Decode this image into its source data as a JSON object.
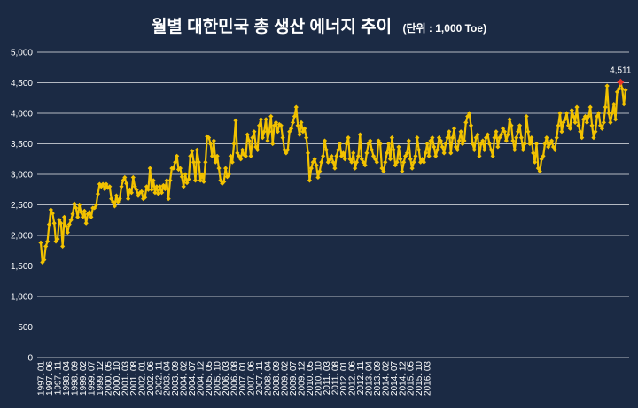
{
  "chart_data": {
    "type": "line",
    "title": "월별 대한민국 총 생산 에너지 추이",
    "title_unit": "(단위 : 1,000 Toe)",
    "ylim": [
      0,
      5000
    ],
    "y_ticks": [
      "0",
      "500",
      "1,000",
      "1,500",
      "2,000",
      "2,500",
      "3,000",
      "3,500",
      "4,000",
      "4,500",
      "5,000"
    ],
    "x_tick_labels": [
      "1997. 01",
      "1997. 06",
      "1997. 11",
      "1998. 04",
      "1998. 09",
      "1999. 02",
      "1999. 07",
      "1999. 12",
      "2000. 05",
      "2000. 10",
      "2001. 03",
      "2001. 08",
      "2002. 01",
      "2002. 06",
      "2002. 11",
      "2003. 04",
      "2003. 09",
      "2004. 02",
      "2004. 07",
      "2004. 12",
      "2005. 05",
      "2005. 10",
      "2006. 03",
      "2006. 08",
      "2007. 01",
      "2007. 06",
      "2007. 11",
      "2008. 04",
      "2008. 09",
      "2009. 02",
      "2009. 07",
      "2009. 12",
      "2010. 05",
      "2010. 10",
      "2011. 03",
      "2011. 08",
      "2012. 01",
      "2012. 06",
      "2012. 11",
      "2013. 04",
      "2013. 09",
      "2014. 02",
      "2014. 07",
      "2014. 12",
      "2015. 05",
      "2015. 10",
      "2016. 03"
    ],
    "grid": true,
    "line_color": "#f2c200",
    "marker_color": "#f2c200",
    "highlight_color": "#e8362a",
    "highlight_label": "4,511",
    "highlight_value": 4511,
    "series": [
      {
        "values": [
          1880,
          1560,
          1600,
          1820,
          1900,
          2180,
          2420,
          2360,
          2200,
          1900,
          1940,
          2250,
          2200,
          1820,
          2300,
          2150,
          2050,
          2180,
          2250,
          2350,
          2520,
          2450,
          2300,
          2500,
          2380,
          2300,
          2400,
          2200,
          2350,
          2380,
          2300,
          2450,
          2450,
          2500,
          2680,
          2840,
          2800,
          2840,
          2760,
          2840,
          2780,
          2800,
          2600,
          2550,
          2480,
          2650,
          2550,
          2600,
          2800,
          2900,
          2950,
          2850,
          2600,
          2750,
          2700,
          2950,
          2800,
          2750,
          2650,
          2700,
          2720,
          2600,
          2620,
          2800,
          2750,
          3100,
          2750,
          2900,
          2700,
          2800,
          2680,
          2800,
          2700,
          2820,
          2760,
          2900,
          2600,
          2900,
          3100,
          3100,
          3200,
          3300,
          3080,
          3100,
          2960,
          2800,
          3000,
          2860,
          2920,
          3300,
          3380,
          3200,
          2900,
          3400,
          3200,
          2900,
          3000,
          2880,
          3200,
          3620,
          3600,
          3500,
          3300,
          3550,
          3200,
          3300,
          3100,
          2900,
          2850,
          2880,
          3100,
          2960,
          3000,
          3300,
          3200,
          3500,
          3880,
          3350,
          3300,
          3250,
          3400,
          3320,
          3300,
          3650,
          3550,
          3300,
          3600,
          3700,
          3450,
          3400,
          3800,
          3900,
          3600,
          3700,
          3900,
          3550,
          3700,
          3950,
          3500,
          3800,
          3850,
          3700,
          3820,
          3800,
          3600,
          3400,
          3350,
          3400,
          3700,
          3750,
          3850,
          3950,
          4100,
          3800,
          3650,
          3850,
          3700,
          3750,
          3600,
          3350,
          2900,
          3100,
          3200,
          3250,
          3150,
          2950,
          3050,
          3200,
          3300,
          3550,
          3400,
          3200,
          3250,
          3300,
          3200,
          3100,
          3300,
          3400,
          3500,
          3300,
          3350,
          3250,
          3500,
          3600,
          3250,
          3200,
          3350,
          3100,
          3200,
          3300,
          3650,
          3250,
          3200,
          3150,
          3350,
          3500,
          3550,
          3400,
          3300,
          3250,
          3200,
          3550,
          3500,
          3100,
          3050,
          3200,
          3350,
          3500,
          3250,
          3600,
          3400,
          3150,
          3200,
          3450,
          3250,
          3050,
          3200,
          3300,
          3350,
          3550,
          3250,
          3100,
          3200,
          3300,
          3600,
          3400,
          3200,
          3250,
          3200,
          3350,
          3500,
          3300,
          3550,
          3600,
          3450,
          3300,
          3400,
          3600,
          3550,
          3450,
          3350,
          3500,
          3600,
          3700,
          3350,
          3600,
          3750,
          3450,
          3400,
          3550,
          3700,
          3500,
          3550,
          3850,
          3950,
          4000,
          3800,
          3500,
          3400,
          3600,
          3650,
          3300,
          3500,
          3550,
          3400,
          3600,
          3650,
          3500,
          3400,
          3300,
          3600,
          3700,
          3450,
          3600,
          3650,
          3750,
          3700,
          3550,
          3650,
          3900,
          3800,
          3550,
          3400,
          3600,
          3700,
          3800,
          3600,
          3400,
          3500,
          3950,
          3700,
          3500,
          3600,
          3350,
          3200,
          3500,
          3100,
          3050,
          3250,
          3300,
          3500,
          3600,
          3450,
          3500,
          3550,
          3450,
          3400,
          3600,
          3800,
          4000,
          3700,
          3850,
          3900,
          4000,
          3800,
          3750,
          4050,
          3950,
          3850,
          4100,
          3800,
          3700,
          3600,
          3900,
          3950,
          3850,
          3950,
          4100,
          3800,
          3600,
          3700,
          3950,
          4000,
          3800,
          3750,
          3850,
          4100,
          4450,
          4000,
          3850,
          4000,
          4150,
          3900,
          4350,
          4400,
          4511,
          4400,
          4150,
          4380
        ]
      }
    ]
  }
}
